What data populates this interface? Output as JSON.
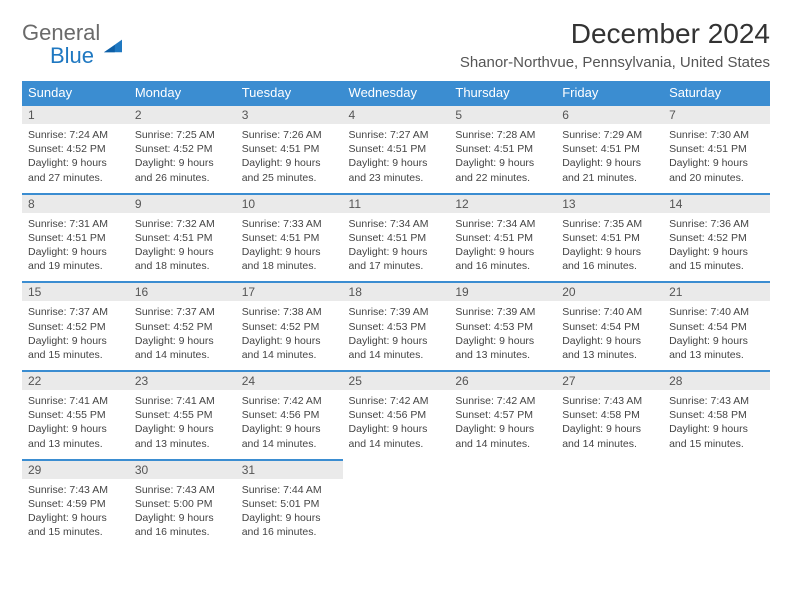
{
  "logo": {
    "text_general": "General",
    "text_blue": "Blue"
  },
  "title": "December 2024",
  "location": "Shanor-Northvue, Pennsylvania, United States",
  "day_headers": [
    "Sunday",
    "Monday",
    "Tuesday",
    "Wednesday",
    "Thursday",
    "Friday",
    "Saturday"
  ],
  "colors": {
    "header_bg": "#3b8dd1",
    "header_text": "#ffffff",
    "daynum_bg": "#eaeaea",
    "text": "#444444",
    "rule": "#3b8dd1"
  },
  "weeks": [
    [
      {
        "n": "1",
        "sunrise": "Sunrise: 7:24 AM",
        "sunset": "Sunset: 4:52 PM",
        "dl1": "Daylight: 9 hours",
        "dl2": "and 27 minutes."
      },
      {
        "n": "2",
        "sunrise": "Sunrise: 7:25 AM",
        "sunset": "Sunset: 4:52 PM",
        "dl1": "Daylight: 9 hours",
        "dl2": "and 26 minutes."
      },
      {
        "n": "3",
        "sunrise": "Sunrise: 7:26 AM",
        "sunset": "Sunset: 4:51 PM",
        "dl1": "Daylight: 9 hours",
        "dl2": "and 25 minutes."
      },
      {
        "n": "4",
        "sunrise": "Sunrise: 7:27 AM",
        "sunset": "Sunset: 4:51 PM",
        "dl1": "Daylight: 9 hours",
        "dl2": "and 23 minutes."
      },
      {
        "n": "5",
        "sunrise": "Sunrise: 7:28 AM",
        "sunset": "Sunset: 4:51 PM",
        "dl1": "Daylight: 9 hours",
        "dl2": "and 22 minutes."
      },
      {
        "n": "6",
        "sunrise": "Sunrise: 7:29 AM",
        "sunset": "Sunset: 4:51 PM",
        "dl1": "Daylight: 9 hours",
        "dl2": "and 21 minutes."
      },
      {
        "n": "7",
        "sunrise": "Sunrise: 7:30 AM",
        "sunset": "Sunset: 4:51 PM",
        "dl1": "Daylight: 9 hours",
        "dl2": "and 20 minutes."
      }
    ],
    [
      {
        "n": "8",
        "sunrise": "Sunrise: 7:31 AM",
        "sunset": "Sunset: 4:51 PM",
        "dl1": "Daylight: 9 hours",
        "dl2": "and 19 minutes."
      },
      {
        "n": "9",
        "sunrise": "Sunrise: 7:32 AM",
        "sunset": "Sunset: 4:51 PM",
        "dl1": "Daylight: 9 hours",
        "dl2": "and 18 minutes."
      },
      {
        "n": "10",
        "sunrise": "Sunrise: 7:33 AM",
        "sunset": "Sunset: 4:51 PM",
        "dl1": "Daylight: 9 hours",
        "dl2": "and 18 minutes."
      },
      {
        "n": "11",
        "sunrise": "Sunrise: 7:34 AM",
        "sunset": "Sunset: 4:51 PM",
        "dl1": "Daylight: 9 hours",
        "dl2": "and 17 minutes."
      },
      {
        "n": "12",
        "sunrise": "Sunrise: 7:34 AM",
        "sunset": "Sunset: 4:51 PM",
        "dl1": "Daylight: 9 hours",
        "dl2": "and 16 minutes."
      },
      {
        "n": "13",
        "sunrise": "Sunrise: 7:35 AM",
        "sunset": "Sunset: 4:51 PM",
        "dl1": "Daylight: 9 hours",
        "dl2": "and 16 minutes."
      },
      {
        "n": "14",
        "sunrise": "Sunrise: 7:36 AM",
        "sunset": "Sunset: 4:52 PM",
        "dl1": "Daylight: 9 hours",
        "dl2": "and 15 minutes."
      }
    ],
    [
      {
        "n": "15",
        "sunrise": "Sunrise: 7:37 AM",
        "sunset": "Sunset: 4:52 PM",
        "dl1": "Daylight: 9 hours",
        "dl2": "and 15 minutes."
      },
      {
        "n": "16",
        "sunrise": "Sunrise: 7:37 AM",
        "sunset": "Sunset: 4:52 PM",
        "dl1": "Daylight: 9 hours",
        "dl2": "and 14 minutes."
      },
      {
        "n": "17",
        "sunrise": "Sunrise: 7:38 AM",
        "sunset": "Sunset: 4:52 PM",
        "dl1": "Daylight: 9 hours",
        "dl2": "and 14 minutes."
      },
      {
        "n": "18",
        "sunrise": "Sunrise: 7:39 AM",
        "sunset": "Sunset: 4:53 PM",
        "dl1": "Daylight: 9 hours",
        "dl2": "and 14 minutes."
      },
      {
        "n": "19",
        "sunrise": "Sunrise: 7:39 AM",
        "sunset": "Sunset: 4:53 PM",
        "dl1": "Daylight: 9 hours",
        "dl2": "and 13 minutes."
      },
      {
        "n": "20",
        "sunrise": "Sunrise: 7:40 AM",
        "sunset": "Sunset: 4:54 PM",
        "dl1": "Daylight: 9 hours",
        "dl2": "and 13 minutes."
      },
      {
        "n": "21",
        "sunrise": "Sunrise: 7:40 AM",
        "sunset": "Sunset: 4:54 PM",
        "dl1": "Daylight: 9 hours",
        "dl2": "and 13 minutes."
      }
    ],
    [
      {
        "n": "22",
        "sunrise": "Sunrise: 7:41 AM",
        "sunset": "Sunset: 4:55 PM",
        "dl1": "Daylight: 9 hours",
        "dl2": "and 13 minutes."
      },
      {
        "n": "23",
        "sunrise": "Sunrise: 7:41 AM",
        "sunset": "Sunset: 4:55 PM",
        "dl1": "Daylight: 9 hours",
        "dl2": "and 13 minutes."
      },
      {
        "n": "24",
        "sunrise": "Sunrise: 7:42 AM",
        "sunset": "Sunset: 4:56 PM",
        "dl1": "Daylight: 9 hours",
        "dl2": "and 14 minutes."
      },
      {
        "n": "25",
        "sunrise": "Sunrise: 7:42 AM",
        "sunset": "Sunset: 4:56 PM",
        "dl1": "Daylight: 9 hours",
        "dl2": "and 14 minutes."
      },
      {
        "n": "26",
        "sunrise": "Sunrise: 7:42 AM",
        "sunset": "Sunset: 4:57 PM",
        "dl1": "Daylight: 9 hours",
        "dl2": "and 14 minutes."
      },
      {
        "n": "27",
        "sunrise": "Sunrise: 7:43 AM",
        "sunset": "Sunset: 4:58 PM",
        "dl1": "Daylight: 9 hours",
        "dl2": "and 14 minutes."
      },
      {
        "n": "28",
        "sunrise": "Sunrise: 7:43 AM",
        "sunset": "Sunset: 4:58 PM",
        "dl1": "Daylight: 9 hours",
        "dl2": "and 15 minutes."
      }
    ],
    [
      {
        "n": "29",
        "sunrise": "Sunrise: 7:43 AM",
        "sunset": "Sunset: 4:59 PM",
        "dl1": "Daylight: 9 hours",
        "dl2": "and 15 minutes."
      },
      {
        "n": "30",
        "sunrise": "Sunrise: 7:43 AM",
        "sunset": "Sunset: 5:00 PM",
        "dl1": "Daylight: 9 hours",
        "dl2": "and 16 minutes."
      },
      {
        "n": "31",
        "sunrise": "Sunrise: 7:44 AM",
        "sunset": "Sunset: 5:01 PM",
        "dl1": "Daylight: 9 hours",
        "dl2": "and 16 minutes."
      },
      null,
      null,
      null,
      null
    ]
  ]
}
